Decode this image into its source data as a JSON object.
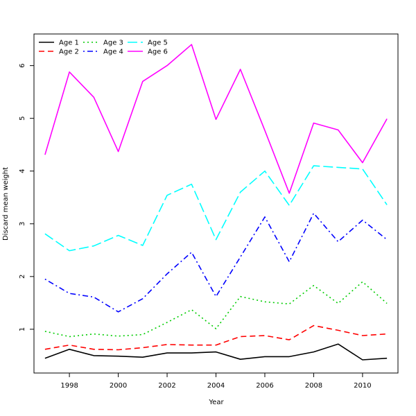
{
  "chart_data": {
    "type": "line",
    "xlabel": "Year",
    "ylabel": "Discard mean weight",
    "xlim": [
      1996.55,
      2011.45
    ],
    "ylim": [
      0.17,
      6.6
    ],
    "x_ticks": [
      1998,
      2000,
      2002,
      2004,
      2006,
      2008,
      2010
    ],
    "y_ticks": [
      1,
      2,
      3,
      4,
      5,
      6
    ],
    "grid": false,
    "legend_position": "top-left",
    "x": [
      1997,
      1998,
      1999,
      2000,
      2001,
      2002,
      2003,
      2004,
      2005,
      2006,
      2007,
      2008,
      2009,
      2010,
      2011
    ],
    "series": [
      {
        "name": "Age 1",
        "color": "#000000",
        "dash": "solid",
        "values": [
          0.45,
          0.62,
          0.5,
          0.49,
          0.47,
          0.55,
          0.55,
          0.57,
          0.43,
          0.48,
          0.48,
          0.57,
          0.72,
          0.42,
          0.45
        ]
      },
      {
        "name": "Age 2",
        "color": "#ff0000",
        "dash": "dashed",
        "values": [
          0.62,
          0.7,
          0.62,
          0.61,
          0.65,
          0.71,
          0.7,
          0.7,
          0.86,
          0.88,
          0.8,
          1.07,
          0.98,
          0.88,
          0.91
        ]
      },
      {
        "name": "Age 3",
        "color": "#00cc00",
        "dash": "dotted",
        "values": [
          0.96,
          0.86,
          0.91,
          0.87,
          0.9,
          1.13,
          1.37,
          1.01,
          1.62,
          1.52,
          1.48,
          1.83,
          1.49,
          1.9,
          1.49
        ]
      },
      {
        "name": "Age 4",
        "color": "#0000ff",
        "dash": "dotdash",
        "values": [
          1.95,
          1.68,
          1.61,
          1.33,
          1.58,
          2.05,
          2.46,
          1.62,
          2.37,
          3.13,
          2.28,
          3.2,
          2.66,
          3.07,
          2.7
        ]
      },
      {
        "name": "Age 5",
        "color": "#00ffff",
        "dash": "longdash",
        "values": [
          2.81,
          2.49,
          2.58,
          2.78,
          2.59,
          3.54,
          3.75,
          2.7,
          3.6,
          4.0,
          3.35,
          4.1,
          4.07,
          4.04,
          3.36
        ]
      },
      {
        "name": "Age 6",
        "color": "#ff00ff",
        "dash": "solid",
        "values": [
          4.31,
          5.88,
          5.4,
          4.37,
          5.7,
          6.0,
          6.4,
          4.98,
          5.93,
          4.77,
          3.58,
          4.91,
          4.78,
          4.16,
          4.99
        ]
      }
    ]
  }
}
